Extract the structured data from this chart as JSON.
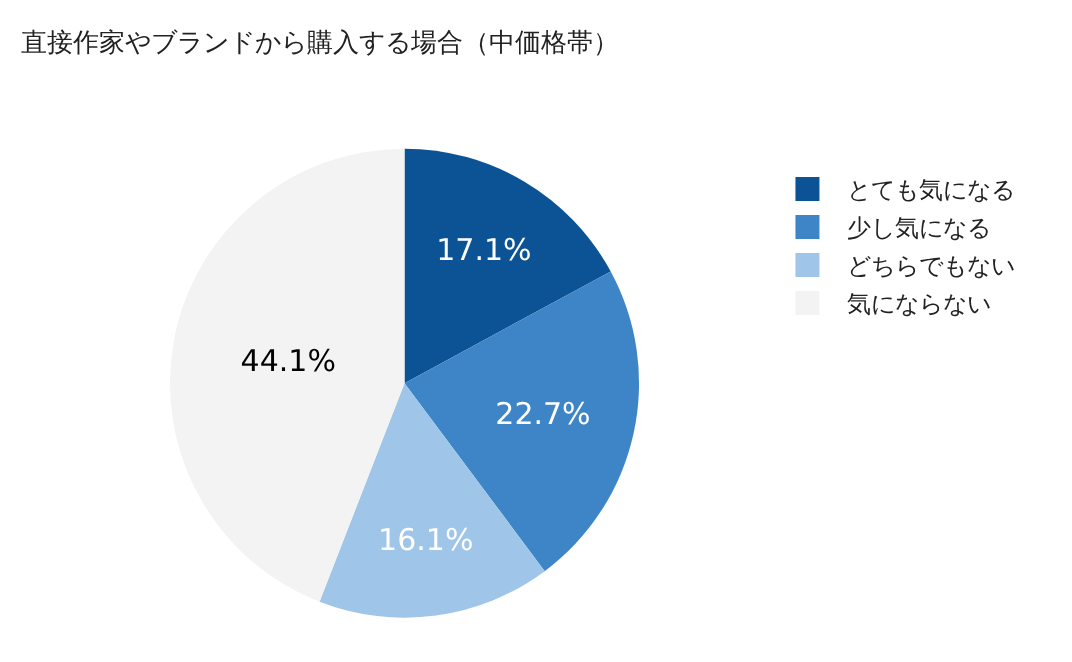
{
  "chart_data": {
    "type": "pie",
    "title": "直接作家やブランドから購入する場合（中価格帯）",
    "categories": [
      "とても気になる",
      "少し気になる",
      "どちらでもない",
      "気にならない"
    ],
    "values": [
      17.1,
      22.7,
      16.1,
      44.1
    ],
    "value_labels": [
      "17.1%",
      "22.7%",
      "16.1%",
      "44.1%"
    ],
    "colors": [
      "#0b5394",
      "#3d85c6",
      "#9fc5e8",
      "#f3f3f3"
    ],
    "legend": "right"
  }
}
